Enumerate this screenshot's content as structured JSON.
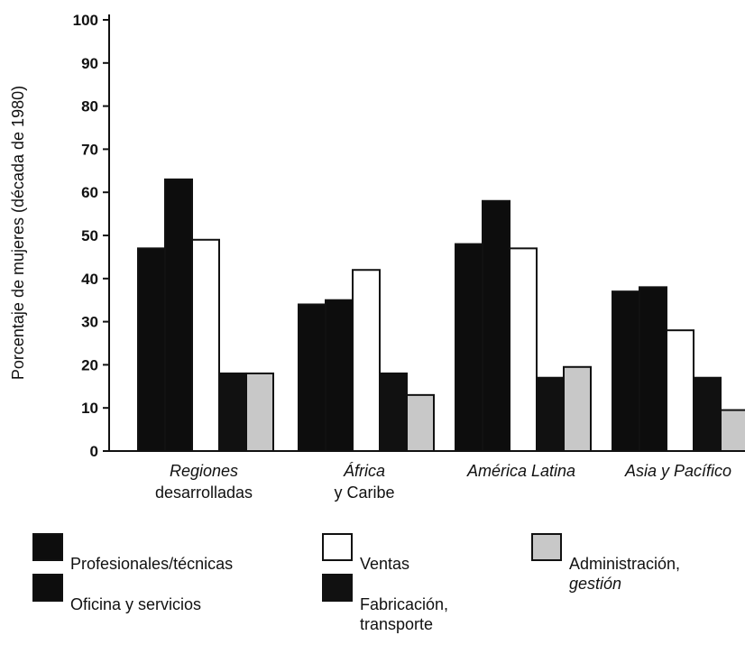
{
  "chart_data": {
    "type": "bar",
    "ylabel": "Porcentaje de mujeres (década de 1980)",
    "xlabel": "",
    "ylim": [
      0,
      100
    ],
    "yticks": [
      0,
      10,
      20,
      30,
      40,
      50,
      60,
      70,
      80,
      90,
      100
    ],
    "categories": [
      {
        "line1": "Regiones",
        "line2": "desarrolladas",
        "line1_italic": true,
        "line2_italic": false
      },
      {
        "line1": "África",
        "line2": "y Caribe",
        "line1_italic": true,
        "line2_italic": false
      },
      {
        "line1": "América Latina",
        "line2": "",
        "line1_italic": true,
        "line2_italic": false
      },
      {
        "line1": "Asia y Pacífico",
        "line2": "",
        "line1_italic": true,
        "line2_italic": false
      }
    ],
    "series": [
      {
        "name": "Profesionales/técnicas",
        "color": "#0d0d0d",
        "values": [
          47,
          34,
          48,
          37
        ]
      },
      {
        "name": "Oficina y servicios",
        "color": "#0d0d0d",
        "values": [
          63,
          35,
          58,
          38
        ]
      },
      {
        "name": "Ventas",
        "color": "#ffffff",
        "values": [
          49,
          42,
          47,
          28
        ]
      },
      {
        "name": "Fabricación, transporte",
        "color": "#111111",
        "values": [
          18,
          18,
          17,
          17
        ]
      },
      {
        "name": "Administración, gestión",
        "color": "#c8c8c8",
        "values": [
          18,
          13,
          19.5,
          9.5
        ]
      }
    ],
    "grid": false,
    "legend_position": "bottom"
  },
  "legend": [
    {
      "line1": "Profesionales/técnicas",
      "line2": "",
      "line2_italic": false,
      "color": "#0d0d0d"
    },
    {
      "line1": "Ventas",
      "line2": "",
      "line2_italic": false,
      "color": "#ffffff"
    },
    {
      "line1": "Administración,",
      "line2": "gestión",
      "line2_italic": true,
      "color": "#c8c8c8"
    },
    {
      "line1": "Oficina y servicios",
      "line2": "",
      "line2_italic": false,
      "color": "#0d0d0d"
    },
    {
      "line1": "Fabricación,",
      "line2": "transporte",
      "line2_italic": false,
      "color": "#111111"
    }
  ]
}
